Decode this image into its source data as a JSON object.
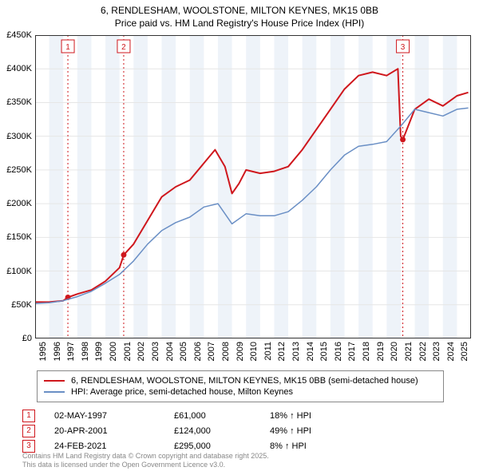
{
  "title": {
    "line1": "6, RENDLESHAM, WOOLSTONE, MILTON KEYNES, MK15 0BB",
    "line2": "Price paid vs. HM Land Registry's House Price Index (HPI)",
    "fontsize": 12
  },
  "chart": {
    "type": "line",
    "background_color": "#ffffff",
    "grid_color": "#e6e6e6",
    "band_color": "#eef3f9",
    "xlim": [
      1995,
      2026
    ],
    "ylim": [
      0,
      450000
    ],
    "ytick_step": 50000,
    "y_ticks": [
      "£0",
      "£50K",
      "£100K",
      "£150K",
      "£200K",
      "£250K",
      "£300K",
      "£350K",
      "£400K",
      "£450K"
    ],
    "x_ticks": [
      "1995",
      "1996",
      "1997",
      "1998",
      "1999",
      "2000",
      "2001",
      "2002",
      "2003",
      "2004",
      "2005",
      "2006",
      "2007",
      "2008",
      "2009",
      "2010",
      "2011",
      "2012",
      "2013",
      "2014",
      "2015",
      "2016",
      "2017",
      "2018",
      "2019",
      "2020",
      "2021",
      "2022",
      "2023",
      "2024",
      "2025"
    ],
    "series": [
      {
        "name": "6, RENDLESHAM, WOOLSTONE, MILTON KEYNES, MK15 0BB (semi-detached house)",
        "color": "#cf171d",
        "line_width": 2,
        "values": [
          [
            1995.0,
            54000
          ],
          [
            1996.0,
            54000
          ],
          [
            1997.0,
            56000
          ],
          [
            1997.33,
            61000
          ],
          [
            1998.0,
            66000
          ],
          [
            1999.0,
            72000
          ],
          [
            2000.0,
            85000
          ],
          [
            2001.0,
            105000
          ],
          [
            2001.3,
            124000
          ],
          [
            2002.0,
            140000
          ],
          [
            2003.0,
            175000
          ],
          [
            2004.0,
            210000
          ],
          [
            2005.0,
            225000
          ],
          [
            2006.0,
            235000
          ],
          [
            2007.0,
            260000
          ],
          [
            2007.8,
            280000
          ],
          [
            2008.5,
            255000
          ],
          [
            2009.0,
            215000
          ],
          [
            2009.5,
            230000
          ],
          [
            2010.0,
            250000
          ],
          [
            2011.0,
            245000
          ],
          [
            2012.0,
            248000
          ],
          [
            2013.0,
            255000
          ],
          [
            2014.0,
            280000
          ],
          [
            2015.0,
            310000
          ],
          [
            2016.0,
            340000
          ],
          [
            2017.0,
            370000
          ],
          [
            2018.0,
            390000
          ],
          [
            2019.0,
            395000
          ],
          [
            2020.0,
            390000
          ],
          [
            2020.8,
            400000
          ],
          [
            2021.0,
            300000
          ],
          [
            2021.15,
            295000
          ],
          [
            2022.0,
            340000
          ],
          [
            2023.0,
            355000
          ],
          [
            2024.0,
            345000
          ],
          [
            2025.0,
            360000
          ],
          [
            2025.8,
            365000
          ]
        ]
      },
      {
        "name": "HPI: Average price, semi-detached house, Milton Keynes",
        "color": "#6a8fc5",
        "line_width": 1.5,
        "values": [
          [
            1995.0,
            52000
          ],
          [
            1996.0,
            53000
          ],
          [
            1997.0,
            56000
          ],
          [
            1998.0,
            62000
          ],
          [
            1999.0,
            70000
          ],
          [
            2000.0,
            82000
          ],
          [
            2001.0,
            95000
          ],
          [
            2002.0,
            115000
          ],
          [
            2003.0,
            140000
          ],
          [
            2004.0,
            160000
          ],
          [
            2005.0,
            172000
          ],
          [
            2006.0,
            180000
          ],
          [
            2007.0,
            195000
          ],
          [
            2008.0,
            200000
          ],
          [
            2009.0,
            170000
          ],
          [
            2010.0,
            185000
          ],
          [
            2011.0,
            182000
          ],
          [
            2012.0,
            182000
          ],
          [
            2013.0,
            188000
          ],
          [
            2014.0,
            205000
          ],
          [
            2015.0,
            225000
          ],
          [
            2016.0,
            250000
          ],
          [
            2017.0,
            272000
          ],
          [
            2018.0,
            285000
          ],
          [
            2019.0,
            288000
          ],
          [
            2020.0,
            292000
          ],
          [
            2021.0,
            315000
          ],
          [
            2022.0,
            340000
          ],
          [
            2023.0,
            335000
          ],
          [
            2024.0,
            330000
          ],
          [
            2025.0,
            340000
          ],
          [
            2025.8,
            342000
          ]
        ]
      }
    ],
    "sale_markers": [
      {
        "label": "1",
        "x": 1997.33,
        "y": 61000,
        "color": "#cf171d"
      },
      {
        "label": "2",
        "x": 2001.3,
        "y": 124000,
        "color": "#cf171d"
      },
      {
        "label": "3",
        "x": 2021.15,
        "y": 295000,
        "color": "#cf171d"
      }
    ]
  },
  "legend": {
    "items": [
      {
        "color": "#cf171d",
        "width": 2,
        "label": "6, RENDLESHAM, WOOLSTONE, MILTON KEYNES, MK15 0BB (semi-detached house)"
      },
      {
        "color": "#6a8fc5",
        "width": 1.5,
        "label": "HPI: Average price, semi-detached house, Milton Keynes"
      }
    ]
  },
  "sales": [
    {
      "badge": "1",
      "date": "02-MAY-1997",
      "price": "£61,000",
      "hpi": "18% ↑ HPI"
    },
    {
      "badge": "2",
      "date": "20-APR-2001",
      "price": "£124,000",
      "hpi": "49% ↑ HPI"
    },
    {
      "badge": "3",
      "date": "24-FEB-2021",
      "price": "£295,000",
      "hpi": "8% ↑ HPI"
    }
  ],
  "sale_badge_color": "#cf171d",
  "attribution": {
    "line1": "Contains HM Land Registry data © Crown copyright and database right 2025.",
    "line2": "This data is licensed under the Open Government Licence v3.0."
  }
}
